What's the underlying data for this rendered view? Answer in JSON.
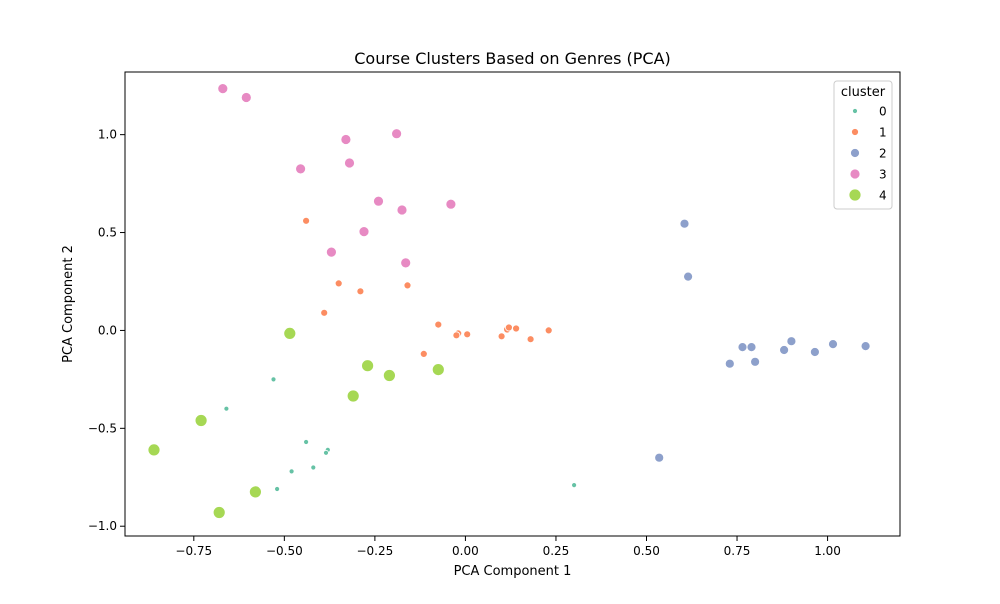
{
  "chart_data": {
    "type": "scatter",
    "title": "Course Clusters Based on Genres (PCA)",
    "xlabel": "PCA Component 1",
    "ylabel": "PCA Component 2",
    "xlim": [
      -0.94,
      1.2
    ],
    "ylim": [
      -1.05,
      1.32
    ],
    "xticks": [
      -0.75,
      -0.5,
      -0.25,
      0.0,
      0.25,
      0.5,
      0.75,
      1.0
    ],
    "xtick_labels": [
      "−0.75",
      "−0.50",
      "−0.25",
      "0.00",
      "0.25",
      "0.50",
      "0.75",
      "1.00"
    ],
    "yticks": [
      -1.0,
      -0.5,
      0.0,
      0.5,
      1.0
    ],
    "ytick_labels": [
      "−1.0",
      "−0.5",
      "0.0",
      "0.5",
      "1.0"
    ],
    "grid": false,
    "legend": {
      "title": "cluster",
      "placement": "top-right"
    },
    "series": [
      {
        "name": "0",
        "color": "#66c2a5",
        "points": [
          [
            -0.53,
            -0.25
          ],
          [
            -0.66,
            -0.4
          ],
          [
            -0.44,
            -0.57
          ],
          [
            -0.38,
            -0.61
          ],
          [
            -0.385,
            -0.625
          ],
          [
            -0.48,
            -0.72
          ],
          [
            -0.42,
            -0.7
          ],
          [
            -0.52,
            -0.81
          ],
          [
            0.3,
            -0.79
          ]
        ]
      },
      {
        "name": "1",
        "color": "#fc8d62",
        "points": [
          [
            -0.44,
            0.56
          ],
          [
            -0.35,
            0.24
          ],
          [
            -0.29,
            0.2
          ],
          [
            -0.16,
            0.23
          ],
          [
            -0.39,
            0.09
          ],
          [
            -0.075,
            0.03
          ],
          [
            -0.02,
            -0.015
          ],
          [
            -0.025,
            -0.025
          ],
          [
            0.005,
            -0.02
          ],
          [
            0.115,
            0.005
          ],
          [
            0.12,
            0.015
          ],
          [
            0.14,
            0.01
          ],
          [
            0.23,
            0.0
          ],
          [
            0.1,
            -0.03
          ],
          [
            0.18,
            -0.045
          ],
          [
            -0.115,
            -0.12
          ]
        ]
      },
      {
        "name": "2",
        "color": "#8da0cb",
        "points": [
          [
            0.605,
            0.545
          ],
          [
            0.615,
            0.275
          ],
          [
            0.9,
            -0.055
          ],
          [
            1.015,
            -0.07
          ],
          [
            1.105,
            -0.08
          ],
          [
            0.765,
            -0.085
          ],
          [
            0.79,
            -0.085
          ],
          [
            0.88,
            -0.1
          ],
          [
            0.965,
            -0.11
          ],
          [
            0.8,
            -0.16
          ],
          [
            0.73,
            -0.17
          ],
          [
            0.535,
            -0.65
          ]
        ]
      },
      {
        "name": "3",
        "color": "#e78ac3",
        "points": [
          [
            -0.67,
            1.235
          ],
          [
            -0.605,
            1.19
          ],
          [
            -0.19,
            1.005
          ],
          [
            -0.33,
            0.975
          ],
          [
            -0.32,
            0.855
          ],
          [
            -0.455,
            0.825
          ],
          [
            -0.24,
            0.66
          ],
          [
            -0.175,
            0.615
          ],
          [
            -0.04,
            0.645
          ],
          [
            -0.28,
            0.505
          ],
          [
            -0.37,
            0.4
          ],
          [
            -0.165,
            0.345
          ]
        ]
      },
      {
        "name": "4",
        "color": "#a6d854",
        "points": [
          [
            -0.485,
            -0.015
          ],
          [
            -0.27,
            -0.18
          ],
          [
            -0.21,
            -0.23
          ],
          [
            -0.075,
            -0.2
          ],
          [
            -0.31,
            -0.335
          ],
          [
            -0.73,
            -0.46
          ],
          [
            -0.86,
            -0.61
          ],
          [
            -0.58,
            -0.825
          ],
          [
            -0.68,
            -0.93
          ]
        ]
      }
    ]
  }
}
